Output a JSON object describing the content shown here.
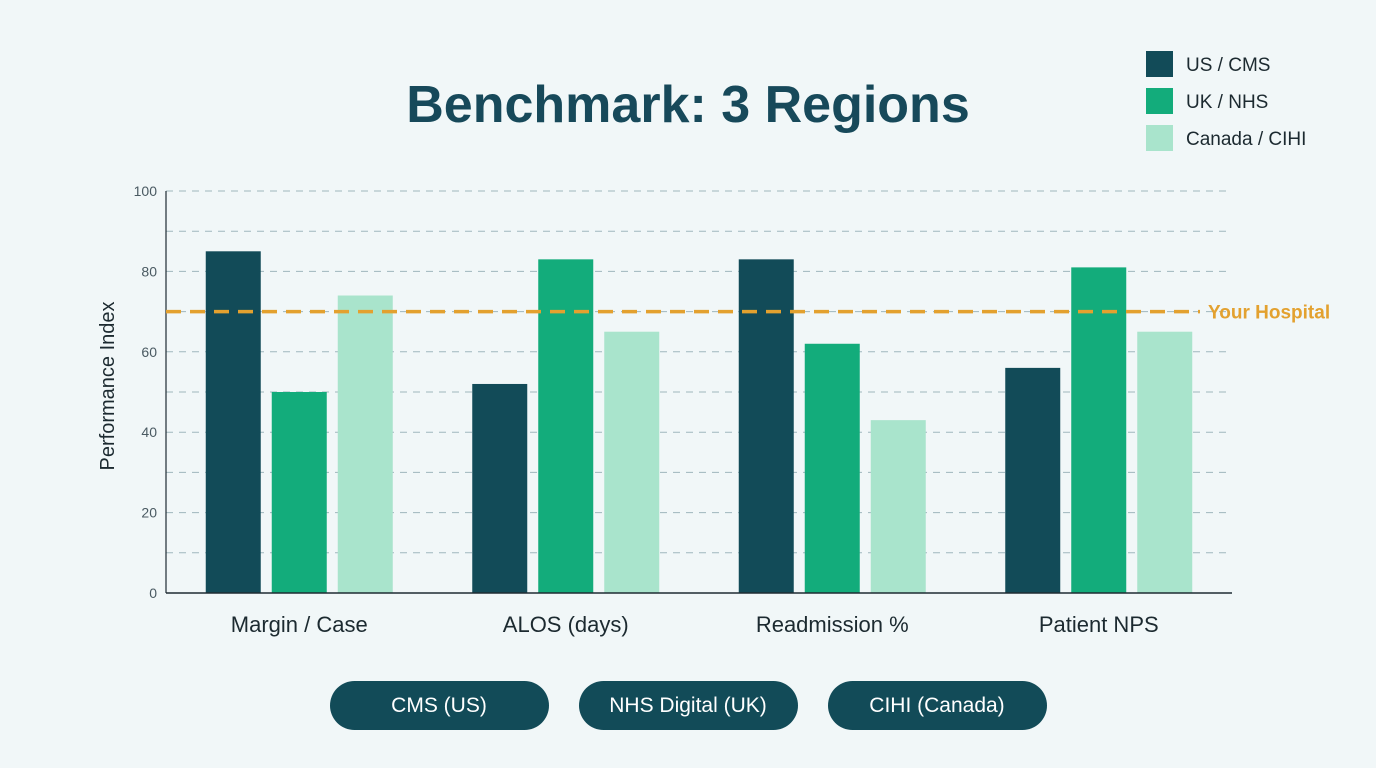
{
  "chart_data": {
    "type": "bar",
    "title": "Benchmark: 3 Regions",
    "ylabel": "Performance Index",
    "xlabel": "",
    "ylim": [
      0,
      100
    ],
    "yticks": [
      0,
      20,
      40,
      60,
      80,
      100
    ],
    "grid": true,
    "legend_position": "top-right",
    "categories": [
      "Margin / Case",
      "ALOS (days)",
      "Readmission %",
      "Patient NPS"
    ],
    "series": [
      {
        "name": "US / CMS",
        "color": "#124b58",
        "values": [
          85,
          52,
          83,
          56
        ]
      },
      {
        "name": "UK / NHS",
        "color": "#13ac7b",
        "values": [
          50,
          83,
          62,
          81
        ]
      },
      {
        "name": "Canada / CIHI",
        "color": "#a9e4cc",
        "values": [
          74,
          65,
          43,
          65
        ]
      }
    ],
    "reference_line": {
      "label": "Your Hospital",
      "value": 70,
      "color": "#e3a12f"
    }
  },
  "sources": [
    "CMS (US)",
    "NHS Digital (UK)",
    "CIHI (Canada)"
  ]
}
